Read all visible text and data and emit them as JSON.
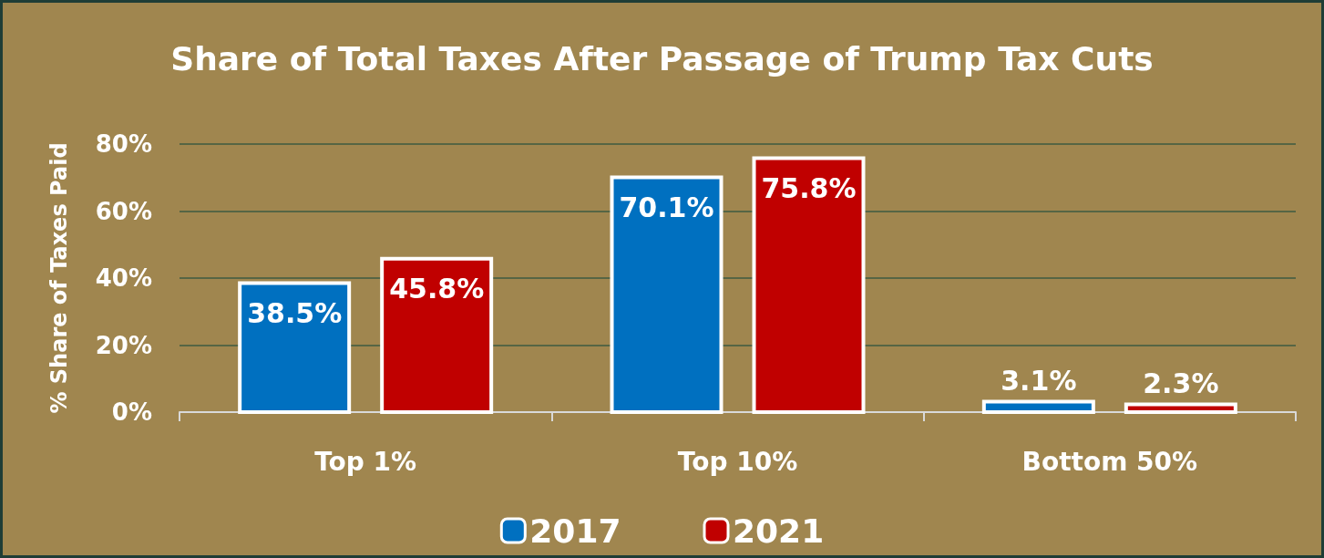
{
  "chart_data": {
    "type": "bar",
    "title": "Share of Total Taxes After Passage of Trump Tax Cuts",
    "ylabel": "% Share of Taxes Paid",
    "categories": [
      "Top 1%",
      "Top 10%",
      "Bottom 50%"
    ],
    "series": [
      {
        "name": "2017",
        "color": "#0070c0",
        "values": [
          38.5,
          70.1,
          3.1
        ],
        "value_labels": [
          "38.5%",
          "70.1%",
          "3.1%"
        ]
      },
      {
        "name": "2021",
        "color": "#c00000",
        "values": [
          45.8,
          75.8,
          2.3
        ],
        "value_labels": [
          "45.8%",
          "75.8%",
          "2.3%"
        ]
      }
    ],
    "ylim": [
      0,
      80
    ],
    "yticks": [
      {
        "value": 0,
        "label": "0%"
      },
      {
        "value": 20,
        "label": "20%"
      },
      {
        "value": 40,
        "label": "40%"
      },
      {
        "value": 60,
        "label": "60%"
      },
      {
        "value": 80,
        "label": "80%"
      }
    ],
    "grid": "y",
    "legend": "bottom"
  }
}
